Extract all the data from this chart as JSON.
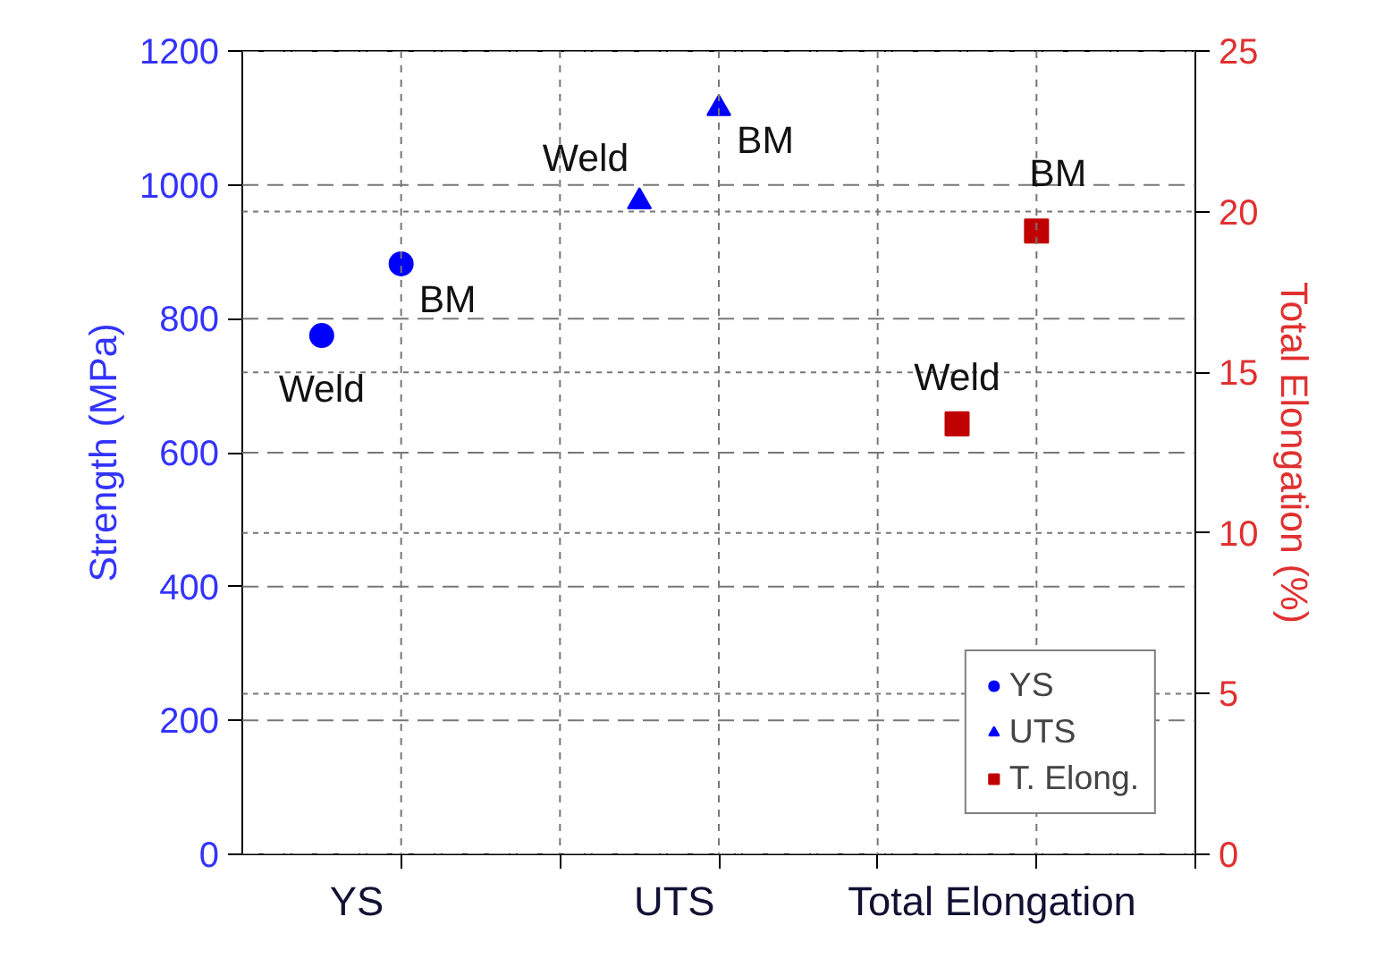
{
  "chart_data": {
    "type": "scatter",
    "categories": [
      "YS",
      "UTS",
      "Total Elongation"
    ],
    "ylabel": "Strength (MPa)",
    "y2label": "Total Elongation (%)",
    "ylim": [
      0,
      1200
    ],
    "yticks": [
      0,
      200,
      400,
      600,
      800,
      1000,
      1200
    ],
    "y2lim": [
      0,
      25
    ],
    "y2ticks": [
      0,
      5,
      10,
      15,
      20,
      25
    ],
    "series": [
      {
        "name": "YS",
        "color": "#0000ff",
        "marker": "circle",
        "values": [
          775,
          null,
          null
        ]
      },
      {
        "color": "#0000ff",
        "marker": "circle",
        "values": [
          882,
          null,
          null
        ]
      },
      {
        "name": "UTS",
        "color": "#0000ff",
        "marker": "triangle",
        "values": [
          null,
          975,
          null
        ]
      },
      {
        "color": "#0000ff",
        "marker": "triangle",
        "values": [
          null,
          1114,
          null
        ]
      },
      {
        "name": "T. Elong.",
        "color": "#c00000",
        "marker": "square",
        "axis": "y2",
        "values": [
          null,
          null,
          13.4
        ]
      },
      {
        "color": "#c00000",
        "marker": "square",
        "axis": "y2",
        "values": [
          null,
          null,
          19.4
        ]
      }
    ],
    "annotations": [
      "Weld",
      "BM",
      "Weld",
      "BM",
      "Weld",
      "BM"
    ],
    "grid": true,
    "legend": "bottom right"
  }
}
